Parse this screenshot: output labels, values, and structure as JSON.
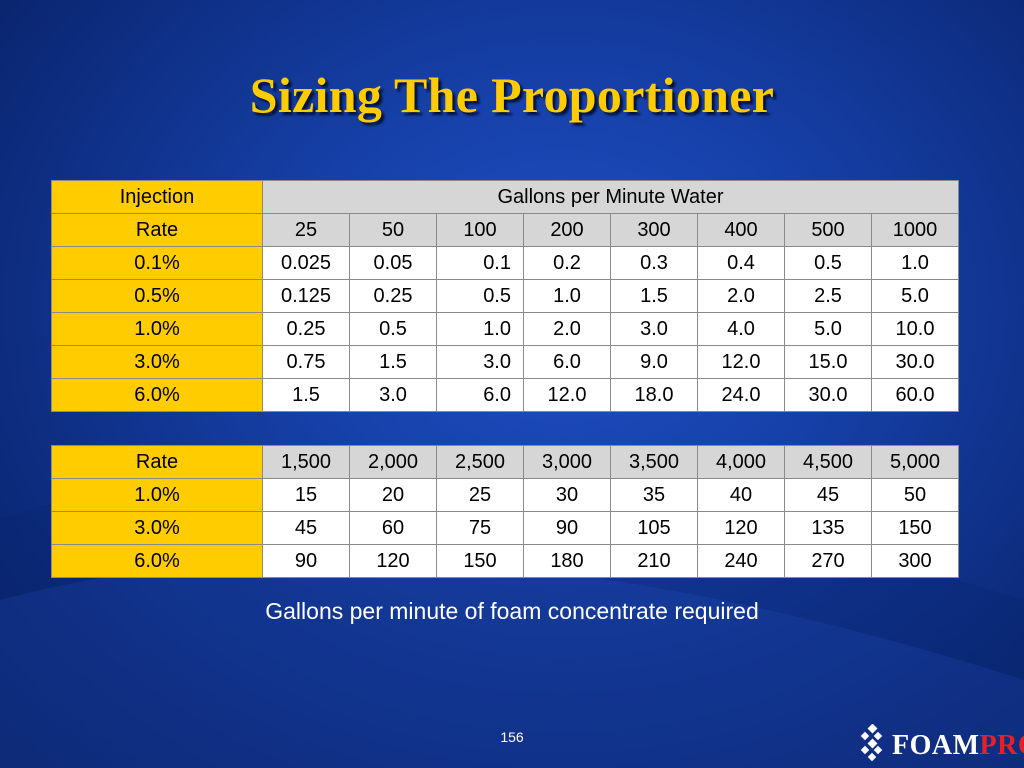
{
  "title": "Sizing The Proportioner",
  "table1": {
    "header_label_1": "Injection",
    "header_group": "Gallons per Minute Water",
    "header_label_2": "Rate",
    "columns": [
      "25",
      "50",
      "100",
      "200",
      "300",
      "400",
      "500",
      "1000"
    ],
    "rows": [
      {
        "rate": "0.1%",
        "values": [
          "0.025",
          "0.05",
          "0.1",
          "0.2",
          "0.3",
          "0.4",
          "0.5",
          "1.0"
        ]
      },
      {
        "rate": "0.5%",
        "values": [
          "0.125",
          "0.25",
          "0.5",
          "1.0",
          "1.5",
          "2.0",
          "2.5",
          "5.0"
        ]
      },
      {
        "rate": "1.0%",
        "values": [
          "0.25",
          "0.5",
          "1.0",
          "2.0",
          "3.0",
          "4.0",
          "5.0",
          "10.0"
        ]
      },
      {
        "rate": "3.0%",
        "values": [
          "0.75",
          "1.5",
          "3.0",
          "6.0",
          "9.0",
          "12.0",
          "15.0",
          "30.0"
        ]
      },
      {
        "rate": "6.0%",
        "values": [
          "1.5",
          "3.0",
          "6.0",
          "12.0",
          "18.0",
          "24.0",
          "30.0",
          "60.0"
        ]
      }
    ]
  },
  "table2": {
    "header_label": "Rate",
    "columns": [
      "1,500",
      "2,000",
      "2,500",
      "3,000",
      "3,500",
      "4,000",
      "4,500",
      "5,000"
    ],
    "rows": [
      {
        "rate": "1.0%",
        "values": [
          "15",
          "20",
          "25",
          "30",
          "35",
          "40",
          "45",
          "50"
        ]
      },
      {
        "rate": "3.0%",
        "values": [
          "45",
          "60",
          "75",
          "90",
          "105",
          "120",
          "135",
          "150"
        ]
      },
      {
        "rate": "6.0%",
        "values": [
          "90",
          "120",
          "150",
          "180",
          "210",
          "240",
          "270",
          "300"
        ]
      }
    ]
  },
  "caption": "Gallons per minute of foam concentrate required",
  "page_number": "156",
  "logo": {
    "part1": "FOAM",
    "part2": "PRO",
    "mark": "®",
    "icon": "diamond-logo-icon",
    "accent_color": "#e4202a"
  },
  "colors": {
    "title": "#ffcc00",
    "label_fill": "#ffcc00",
    "header_fill": "#d6d6d6",
    "background": "#1640a8"
  }
}
